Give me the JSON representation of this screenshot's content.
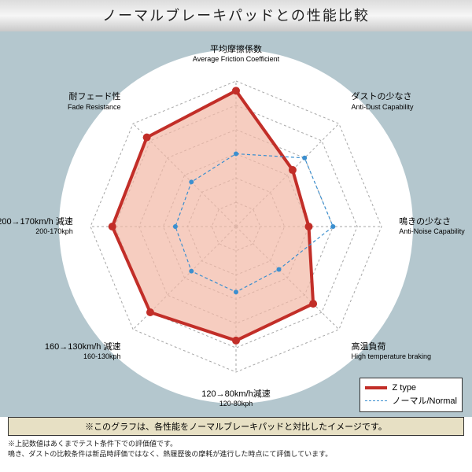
{
  "title": "ノーマルブレーキパッドとの性能比較",
  "background_color": "#b4c7ce",
  "circle_color": "#ffffff",
  "grid_color": "#a6a6a6",
  "axes": [
    {
      "label_jp": "平均摩擦係数",
      "label_en": "Average Friction Coefficient"
    },
    {
      "label_jp": "ダストの少なさ",
      "label_en": "Anti-Dust Capability"
    },
    {
      "label_jp": "鳴きの少なさ",
      "label_en": "Anti-Noise Capability"
    },
    {
      "label_jp": "高温負荷",
      "label_en": "High temperature braking"
    },
    {
      "label_jp": "120→80km/h減速",
      "label_en": "120-80kph"
    },
    {
      "label_jp": "160→130km/h 減速",
      "label_en": "160-130kph"
    },
    {
      "label_jp": "200→170km/h 減速",
      "label_en": "200-170kph"
    },
    {
      "label_jp": "耐フェード性",
      "label_en": "Fade Resistance"
    }
  ],
  "rings": 6,
  "series": [
    {
      "name": "Z type",
      "color": "#c22e28",
      "fill": "#f2b8a5",
      "fill_opacity": 0.7,
      "line_width": 4,
      "dash": "",
      "marker": "circle",
      "marker_size": 5,
      "values": [
        5.6,
        3.3,
        3.0,
        4.5,
        4.7,
        5.0,
        5.1,
        5.2
      ]
    },
    {
      "name": "ノーマル/Normal",
      "color": "#3b8fcf",
      "fill": "none",
      "fill_opacity": 0,
      "line_width": 1.2,
      "dash": "4 3",
      "marker": "circle",
      "marker_size": 3,
      "values": [
        3.0,
        4.0,
        4.0,
        2.5,
        2.7,
        2.6,
        2.5,
        2.6
      ]
    }
  ],
  "caption": "※このグラフは、各性能をノーマルブレーキパッドと対比したイメージです。",
  "notes": [
    "※上記数値はあくまでテスト条件下での評価値です。",
    "鳴き、ダストの比較条件は新品時評価ではなく、熱履歴後の摩耗が進行した時点にて評価しています。"
  ]
}
